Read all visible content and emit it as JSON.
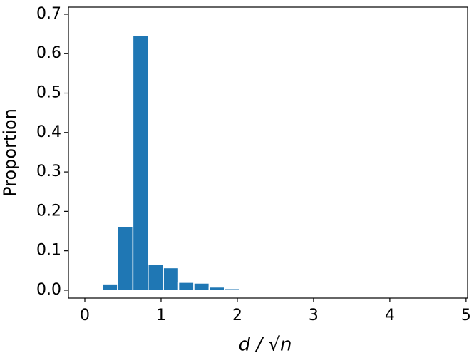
{
  "chart_data": {
    "type": "histogram",
    "ylabel": "Proportion",
    "xlabel": "d / √n",
    "bins": [
      0.03,
      0.23,
      0.43,
      0.63,
      0.83,
      1.03,
      1.23,
      1.43,
      1.63,
      1.83,
      2.03,
      2.23,
      2.43,
      2.63,
      2.83,
      3.03,
      3.23,
      3.43,
      3.63,
      3.83,
      4.03,
      4.23,
      4.43,
      4.63,
      4.83,
      5.03
    ],
    "values": [
      0.0005,
      0.016,
      0.161,
      0.647,
      0.065,
      0.057,
      0.02,
      0.018,
      0.008,
      0.004,
      0.003,
      0.002,
      0.001,
      0.001,
      0.0005,
      0.0005,
      0.0004,
      0.0003,
      0.0003,
      0.0002,
      0.0002,
      0.0001,
      0.0001,
      0.0001,
      0
    ],
    "color": "#1f77b4",
    "xlim": [
      -0.215,
      5.02
    ],
    "ylim": [
      -0.02,
      0.718
    ],
    "xticks": [
      0,
      1,
      2,
      3,
      4,
      5
    ],
    "yticks": [
      {
        "value": 0,
        "label": "0.0"
      },
      0.1,
      0.2,
      0.3,
      0.4,
      0.5,
      0.6,
      0.7
    ]
  }
}
